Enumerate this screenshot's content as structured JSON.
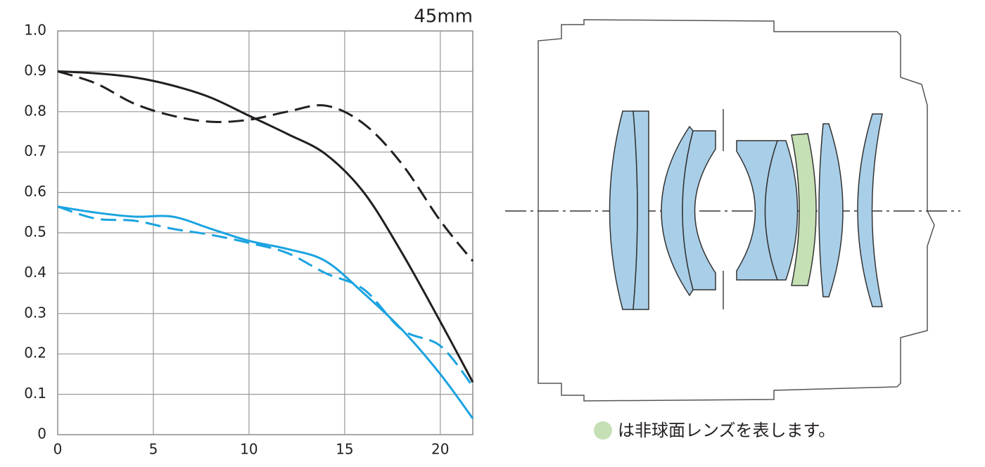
{
  "chart_data": {
    "type": "line",
    "label": "45mm",
    "x": [
      0,
      2,
      4,
      6,
      8,
      10,
      12,
      14,
      16,
      18,
      20,
      21.7
    ],
    "series": [
      {
        "color": "#231f20",
        "dash": false,
        "values": [
          0.9,
          0.895,
          0.885,
          0.865,
          0.835,
          0.79,
          0.745,
          0.695,
          0.6,
          0.45,
          0.28,
          0.13
        ]
      },
      {
        "color": "#231f20",
        "dash": true,
        "values": [
          0.9,
          0.87,
          0.82,
          0.79,
          0.775,
          0.78,
          0.8,
          0.815,
          0.77,
          0.67,
          0.53,
          0.43
        ]
      },
      {
        "color": "#1aa3e0",
        "dash": false,
        "values": [
          0.565,
          0.55,
          0.54,
          0.54,
          0.51,
          0.48,
          0.46,
          0.43,
          0.35,
          0.26,
          0.15,
          0.04
        ]
      },
      {
        "color": "#1aa3e0",
        "dash": true,
        "values": [
          0.565,
          0.535,
          0.53,
          0.51,
          0.495,
          0.475,
          0.45,
          0.4,
          0.36,
          0.26,
          0.22,
          0.12
        ]
      }
    ],
    "xlim": [
      0,
      21.7
    ],
    "xticks": [
      0,
      5,
      10,
      15,
      20
    ],
    "ylim": [
      0,
      1
    ],
    "yticks": [
      0,
      0.1,
      0.2,
      0.3,
      0.4,
      0.5,
      0.6,
      0.7,
      0.8,
      0.9,
      {
        "value": 1,
        "label": "1.0"
      }
    ],
    "grid": true
  },
  "lens_diagram": {
    "caption": "は非球面レンズを表します。"
  }
}
